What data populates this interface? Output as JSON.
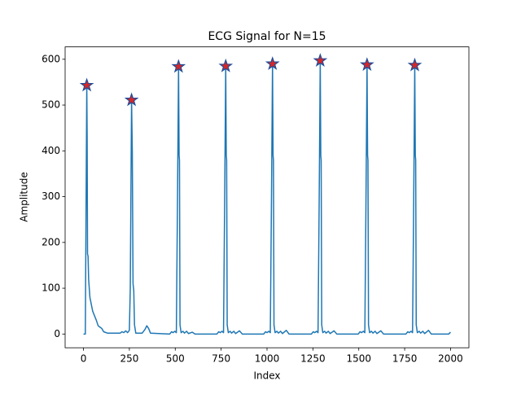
{
  "chart_data": {
    "type": "line",
    "title": "ECG Signal for N=15",
    "xlabel": "Index",
    "ylabel": "Amplitude",
    "xlim": [
      -100,
      2100
    ],
    "ylim": [
      -30,
      627
    ],
    "xticks": [
      0,
      250,
      500,
      750,
      1000,
      1250,
      1500,
      1750,
      2000
    ],
    "yticks": [
      0,
      100,
      200,
      300,
      400,
      500,
      600
    ],
    "grid": false,
    "series": [
      {
        "type": "line",
        "color": "#1f77b4",
        "x": [
          0,
          10,
          18,
          20,
          22,
          25,
          28,
          35,
          50,
          70,
          80,
          90,
          100,
          110,
          130,
          200,
          210,
          220,
          230,
          240,
          250,
          255,
          262,
          266,
          270,
          274,
          278,
          285,
          320,
          335,
          345,
          355,
          365,
          470,
          480,
          488,
          498,
          506,
          512,
          518,
          521,
          523,
          526,
          532,
          542,
          550,
          562,
          572,
          593,
          608,
          727,
          737,
          745,
          755,
          763,
          769,
          775,
          778,
          780,
          783,
          789,
          799,
          807,
          819,
          829,
          850,
          865,
          982,
          992,
          1000,
          1010,
          1018,
          1024,
          1030,
          1033,
          1035,
          1038,
          1044,
          1054,
          1062,
          1074,
          1084,
          1105,
          1120,
          1242,
          1252,
          1260,
          1270,
          1278,
          1284,
          1290,
          1293,
          1295,
          1298,
          1304,
          1314,
          1322,
          1334,
          1344,
          1365,
          1380,
          1497,
          1507,
          1515,
          1525,
          1533,
          1539,
          1545,
          1548,
          1550,
          1553,
          1559,
          1569,
          1577,
          1589,
          1599,
          1620,
          1635,
          1757,
          1767,
          1775,
          1785,
          1793,
          1799,
          1805,
          1808,
          1810,
          1813,
          1819,
          1829,
          1837,
          1849,
          1859,
          1880,
          1895,
          1990,
          2000
        ],
        "values": [
          0,
          0,
          543,
          430,
          175,
          170,
          120,
          80,
          50,
          30,
          18,
          15,
          12,
          5,
          2,
          2,
          5,
          3,
          7,
          3,
          8,
          100,
          511,
          400,
          110,
          95,
          20,
          2,
          2,
          10,
          18,
          12,
          2,
          0,
          5,
          3,
          6,
          3,
          280,
          584,
          390,
          380,
          20,
          3,
          6,
          2,
          6,
          1,
          4,
          0,
          0,
          5,
          3,
          6,
          3,
          280,
          585,
          390,
          380,
          20,
          3,
          6,
          2,
          6,
          1,
          7,
          0,
          0,
          5,
          3,
          6,
          3,
          280,
          590,
          390,
          380,
          20,
          3,
          6,
          2,
          6,
          1,
          8,
          0,
          0,
          5,
          3,
          6,
          3,
          280,
          597,
          390,
          380,
          20,
          3,
          6,
          2,
          6,
          1,
          7,
          0,
          0,
          5,
          3,
          6,
          3,
          280,
          588,
          390,
          380,
          20,
          3,
          6,
          2,
          6,
          1,
          7,
          0,
          0,
          5,
          3,
          6,
          3,
          280,
          587,
          390,
          380,
          20,
          3,
          6,
          2,
          6,
          1,
          8,
          0,
          0,
          4
        ]
      },
      {
        "type": "scatter",
        "marker": "star",
        "color": "#d62728",
        "edgecolor": "#1f4e9a",
        "x": [
          18,
          262,
          518,
          775,
          1030,
          1290,
          1545,
          1805
        ],
        "values": [
          543,
          511,
          584,
          585,
          590,
          597,
          588,
          587
        ]
      }
    ]
  }
}
